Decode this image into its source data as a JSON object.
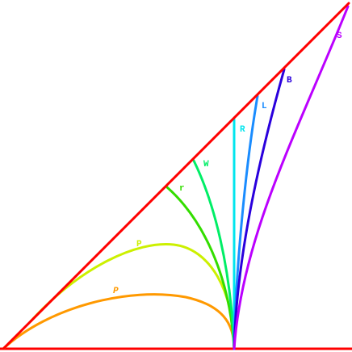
{
  "curves": [
    {
      "label": "S"
    },
    {
      "label": "B"
    },
    {
      "label": "L"
    },
    {
      "label": "R"
    },
    {
      "label": "W"
    },
    {
      "label": "r"
    },
    {
      "label": "P"
    },
    {
      "label": "P"
    }
  ]
}
